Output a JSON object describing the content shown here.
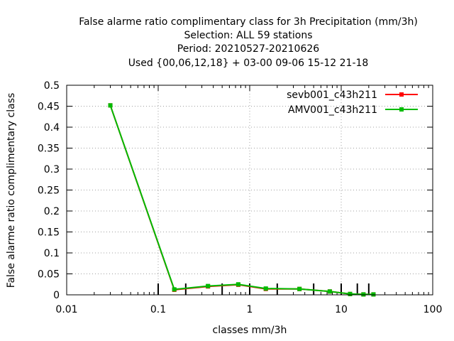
{
  "chart_data": {
    "type": "line",
    "title_lines": [
      "False alarme ratio complimentary class  for 3h Precipitation (mm/3h)",
      "Selection: ALL     59 stations",
      "Period: 20210527-20210626",
      "Used {00,06,12,18} + 03-00 09-06 15-12 21-18"
    ],
    "xlabel": "classes mm/3h",
    "ylabel": "False alarme ratio complimentary class",
    "x_scale": "log",
    "xlim": [
      0.01,
      100
    ],
    "ylim": [
      0,
      0.5
    ],
    "x_ticks": [
      "0.01",
      "0.1",
      "1",
      "10",
      "100"
    ],
    "x_tick_values": [
      0.01,
      0.1,
      1,
      10,
      100
    ],
    "y_ticks": [
      "0",
      "0.05",
      "0.1",
      "0.15",
      "0.2",
      "0.25",
      "0.3",
      "0.35",
      "0.4",
      "0.45",
      "0.5"
    ],
    "y_tick_values": [
      0,
      0.05,
      0.1,
      0.15,
      0.2,
      0.25,
      0.3,
      0.35,
      0.4,
      0.45,
      0.5
    ],
    "grid": true,
    "legend_position": "top-right",
    "class_bounds": [
      0.1,
      0.2,
      0.5,
      1,
      2,
      5,
      10,
      15,
      20
    ],
    "series": [
      {
        "name": "sevb001_c43h211",
        "color": "#ff0000",
        "x": [
          0.03,
          0.15,
          0.35,
          0.75,
          1.5,
          3.5,
          7.5,
          12.5,
          17.5,
          22.5
        ],
        "y": [
          0.452,
          0.012,
          0.02,
          0.024,
          0.014,
          0.014,
          0.008,
          0.002,
          0.001,
          0.001
        ]
      },
      {
        "name": "AMV001_c43h211",
        "color": "#00bb00",
        "x": [
          0.03,
          0.15,
          0.35,
          0.75,
          1.5,
          3.5,
          7.5,
          12.5,
          17.5,
          22.5
        ],
        "y": [
          0.452,
          0.013,
          0.021,
          0.025,
          0.015,
          0.014,
          0.008,
          0.002,
          0.001,
          0.001
        ]
      }
    ]
  }
}
